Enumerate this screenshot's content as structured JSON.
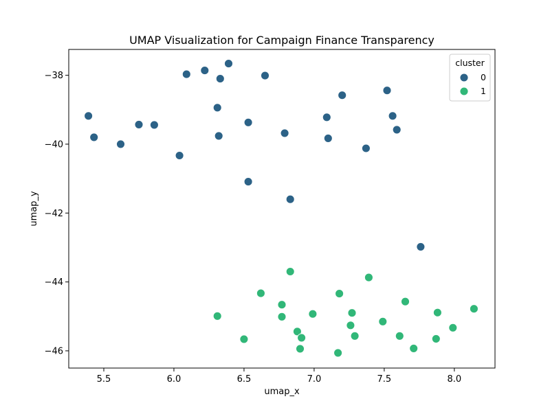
{
  "chart_data": {
    "type": "scatter",
    "title": "UMAP Visualization for Campaign Finance Transparency",
    "xlabel": "umap_x",
    "ylabel": "umap_y",
    "xlim": [
      5.25,
      8.29
    ],
    "ylim": [
      -46.5,
      -37.25
    ],
    "xticks": [
      5.5,
      6.0,
      6.5,
      7.0,
      7.5,
      8.0
    ],
    "xtick_labels": [
      "5.5",
      "6.0",
      "6.5",
      "7.0",
      "7.5",
      "8.0"
    ],
    "yticks": [
      -38,
      -40,
      -42,
      -44,
      -46
    ],
    "ytick_labels": [
      "−38",
      "−40",
      "−42",
      "−44",
      "−46"
    ],
    "grid": false,
    "legend": {
      "title": "cluster",
      "placement": "top-right",
      "entries": [
        {
          "label": "0",
          "color": "#2c6287"
        },
        {
          "label": "1",
          "color": "#31b778"
        }
      ]
    },
    "series": [
      {
        "cluster": "0",
        "color": "#2c6287",
        "points": [
          [
            5.39,
            -39.18
          ],
          [
            5.43,
            -39.8
          ],
          [
            5.62,
            -40.0
          ],
          [
            5.75,
            -39.43
          ],
          [
            5.86,
            -39.44
          ],
          [
            6.04,
            -40.33
          ],
          [
            6.09,
            -37.97
          ],
          [
            6.22,
            -37.86
          ],
          [
            6.31,
            -38.94
          ],
          [
            6.32,
            -39.76
          ],
          [
            6.33,
            -38.1
          ],
          [
            6.39,
            -37.66
          ],
          [
            6.53,
            -39.37
          ],
          [
            6.53,
            -41.09
          ],
          [
            6.65,
            -38.01
          ],
          [
            6.79,
            -39.68
          ],
          [
            6.83,
            -41.6
          ],
          [
            7.09,
            -39.22
          ],
          [
            7.1,
            -39.83
          ],
          [
            7.2,
            -38.58
          ],
          [
            7.37,
            -40.12
          ],
          [
            7.52,
            -38.44
          ],
          [
            7.56,
            -39.18
          ],
          [
            7.59,
            -39.58
          ],
          [
            7.76,
            -42.98
          ]
        ]
      },
      {
        "cluster": "1",
        "color": "#31b778",
        "points": [
          [
            6.31,
            -44.99
          ],
          [
            6.5,
            -45.66
          ],
          [
            6.62,
            -44.33
          ],
          [
            6.77,
            -44.66
          ],
          [
            6.77,
            -45.01
          ],
          [
            6.83,
            -43.7
          ],
          [
            6.88,
            -45.44
          ],
          [
            6.9,
            -45.94
          ],
          [
            6.91,
            -45.62
          ],
          [
            6.99,
            -44.93
          ],
          [
            7.17,
            -46.06
          ],
          [
            7.18,
            -44.34
          ],
          [
            7.26,
            -45.26
          ],
          [
            7.27,
            -44.9
          ],
          [
            7.29,
            -45.57
          ],
          [
            7.39,
            -43.87
          ],
          [
            7.49,
            -45.15
          ],
          [
            7.61,
            -45.57
          ],
          [
            7.65,
            -44.57
          ],
          [
            7.71,
            -45.93
          ],
          [
            7.87,
            -45.65
          ],
          [
            7.88,
            -44.89
          ],
          [
            7.99,
            -45.33
          ],
          [
            8.14,
            -44.78
          ]
        ]
      }
    ]
  }
}
